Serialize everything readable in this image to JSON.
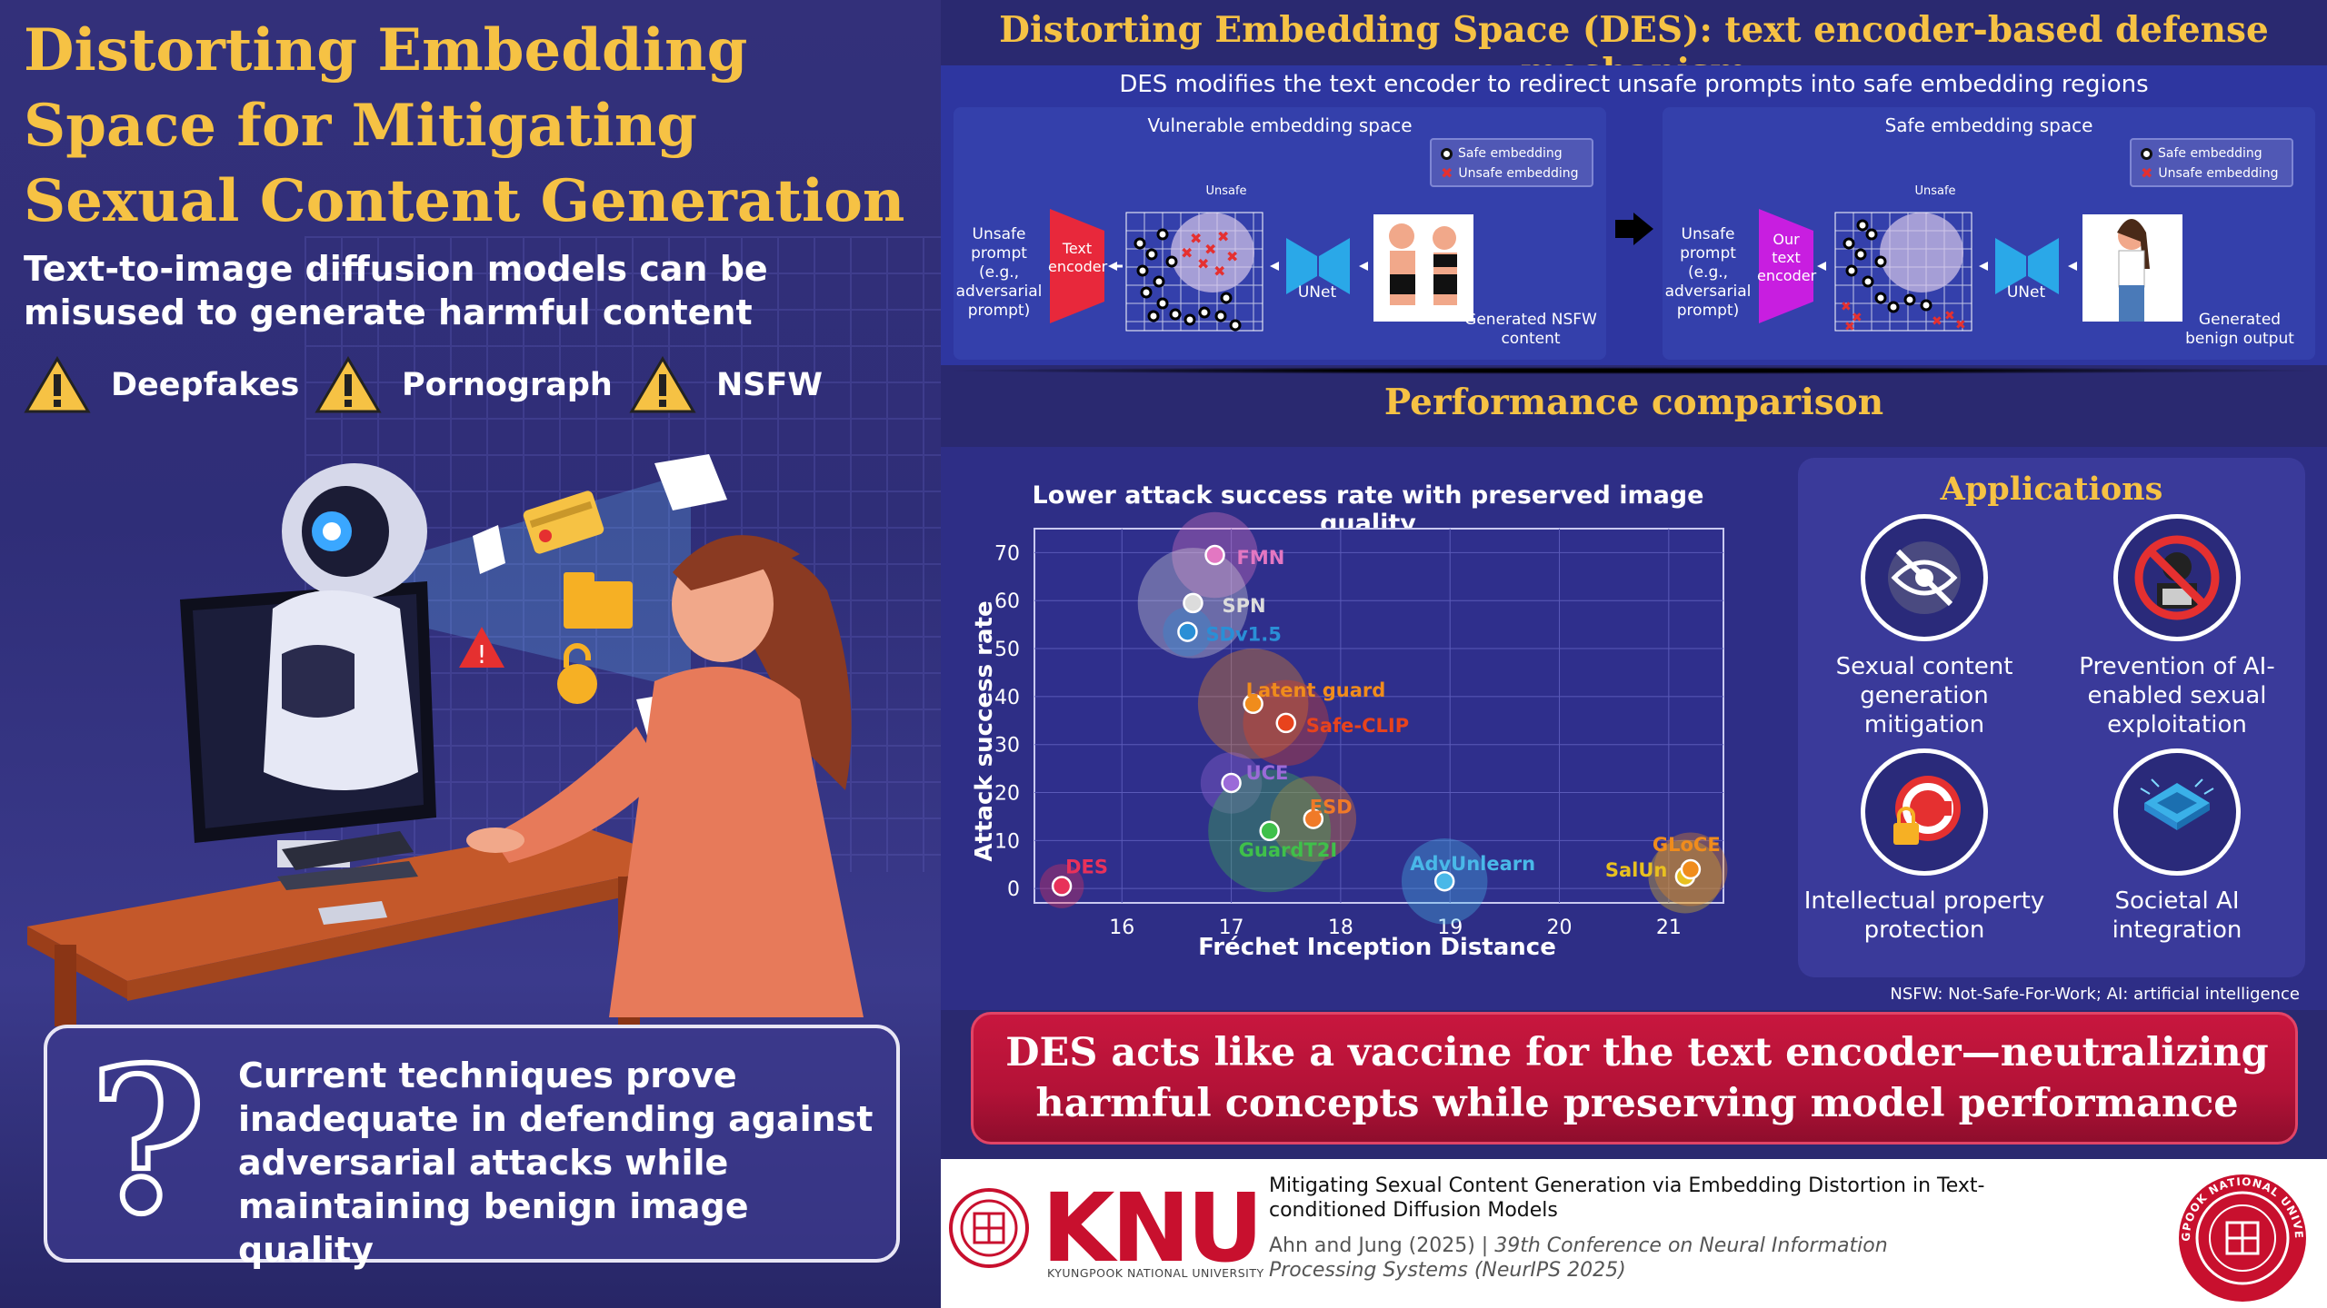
{
  "left": {
    "title": "Distorting Embedding Space for Mitigating Sexual Content Generation",
    "subtitle": "Text-to-image diffusion models can be misused to generate harmful content",
    "warnings": [
      "Deepfakes",
      "Pornograph",
      "NSFW"
    ],
    "callout": "Current techniques prove inadequate in defending against adversarial attacks while maintaining benign image quality",
    "callout_symbol": "?"
  },
  "mechanism": {
    "title": "Distorting Embedding Space (DES): text encoder-based defense mechanism",
    "subtitle": "DES modifies the text encoder to redirect unsafe prompts into safe embedding regions",
    "vulnerable": {
      "title": "Vulnerable embedding space",
      "prompt": "Unsafe prompt (e.g., adversarial prompt)",
      "encoder": "Text encoder",
      "unsafe_label": "Unsafe",
      "unet": "UNet",
      "output": "Generated NSFW content"
    },
    "safe": {
      "title": "Safe embedding space",
      "prompt": "Unsafe prompt (e.g., adversarial prompt)",
      "encoder": "Our text encoder",
      "unsafe_label": "Unsafe",
      "unet": "UNet",
      "output": "Generated benign output"
    },
    "legend": {
      "safe": "Safe embedding",
      "unsafe": "Unsafe embedding"
    }
  },
  "performance": {
    "title": "Performance comparison"
  },
  "chart_data": {
    "type": "scatter",
    "title": "Lower attack success rate with preserved image quality",
    "xlabel": "Fréchet Inception Distance",
    "ylabel": "Attack success rate",
    "xlim": [
      15.2,
      21.5
    ],
    "ylim": [
      -3,
      75
    ],
    "xticks": [
      16,
      17,
      18,
      19,
      20,
      21
    ],
    "yticks": [
      0,
      10,
      20,
      30,
      40,
      50,
      60,
      70
    ],
    "points": [
      {
        "name": "FMN",
        "x": 16.85,
        "y": 69.5,
        "color": "#e377c2",
        "bubble": 35
      },
      {
        "name": "SPN",
        "x": 16.65,
        "y": 59.5,
        "color": "#dcdcdc",
        "bubble": 45
      },
      {
        "name": "SDv1.5",
        "x": 16.6,
        "y": 53.5,
        "color": "#2a8fd6",
        "bubble": 20
      },
      {
        "name": "Latent guard",
        "x": 17.2,
        "y": 38.5,
        "color": "#f08c1c",
        "bubble": 45
      },
      {
        "name": "Safe-CLIP",
        "x": 17.5,
        "y": 34.5,
        "color": "#e8431c",
        "bubble": 35
      },
      {
        "name": "UCE",
        "x": 17.0,
        "y": 22,
        "color": "#9b6ad8",
        "bubble": 25
      },
      {
        "name": "ESD",
        "x": 17.75,
        "y": 14.5,
        "color": "#f07a28",
        "bubble": 35
      },
      {
        "name": "GuardT2I",
        "x": 17.35,
        "y": 12,
        "color": "#3fc04a",
        "bubble": 50
      },
      {
        "name": "AdvUnlearn",
        "x": 18.95,
        "y": 1.5,
        "color": "#49b8e8",
        "bubble": 35
      },
      {
        "name": "SalUn",
        "x": 21.15,
        "y": 2.5,
        "color": "#e8c020",
        "bubble": 30
      },
      {
        "name": "GLoCE",
        "x": 21.2,
        "y": 4,
        "color": "#f08c1c",
        "bubble": 30
      },
      {
        "name": "DES",
        "x": 15.45,
        "y": 0.5,
        "color": "#e8315a",
        "bubble": 18
      }
    ],
    "grid": true
  },
  "applications": {
    "title": "Applications",
    "items": [
      {
        "label": "Sexual content generation mitigation",
        "icon": "eye-slash-icon"
      },
      {
        "label": "Prevention of AI-enabled sexual exploitation",
        "icon": "no-hacker-icon"
      },
      {
        "label": "Intellectual property protection",
        "icon": "copyright-lock-icon"
      },
      {
        "label": "Societal AI integration",
        "icon": "chip-icon"
      }
    ]
  },
  "footnote": "NSFW: Not-Safe-For-Work; AI: artificial intelligence",
  "banner": "DES acts like a vaccine for the text encoder—neutralizing harmful concepts while preserving model performance",
  "footer": {
    "logo_word": "KNU",
    "logo_sub": "KYUNGPOOK NATIONAL UNIVERSITY",
    "paper_title": "Mitigating Sexual Content Generation via Embedding Distortion in Text-conditioned Diffusion Models",
    "authors": "Ahn and Jung (2025) | ",
    "venue": "39th Conference on Neural Information Processing Systems (NeurIPS 2025)",
    "seal_text": "KYUNGPOOK NATIONAL UNIVERSITY"
  },
  "colors": {
    "gold": "#f6c244",
    "accent_red": "#c8173e",
    "navy": "#2a2970"
  }
}
